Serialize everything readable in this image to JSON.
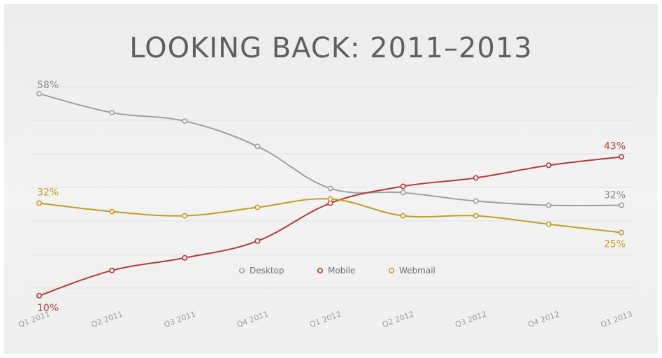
{
  "chart_data": {
    "type": "line",
    "title": "LOOKING BACK: 2011–2013",
    "categories": [
      "Q1 2011",
      "Q2 2011",
      "Q3 2011",
      "Q4 2011",
      "Q1 2012",
      "Q2 2012",
      "Q3 2012",
      "Q4 2012",
      "Q1 2013"
    ],
    "ylim": [
      5,
      63
    ],
    "grid": true,
    "legend_position": "bottom-center",
    "series": [
      {
        "name": "Desktop",
        "color": "#a0a0a3",
        "values": [
          58,
          53.5,
          51.5,
          45.5,
          35.5,
          34.5,
          32.5,
          31.5,
          31.5
        ],
        "labels": [
          {
            "index": 0,
            "text": "58%",
            "color": "#8e8e90"
          },
          {
            "index": 8,
            "text": "32%",
            "color": "#8e8e90"
          }
        ]
      },
      {
        "name": "Mobile",
        "color": "#b83a34",
        "values": [
          10,
          16,
          19,
          23,
          32,
          36,
          38,
          41,
          43
        ],
        "labels": [
          {
            "index": 0,
            "text": "10%",
            "color": "#b83a34"
          },
          {
            "index": 8,
            "text": "43%",
            "color": "#b83a34"
          }
        ]
      },
      {
        "name": "Webmail",
        "color": "#c79b22",
        "values": [
          32,
          30,
          29,
          31,
          33,
          29,
          29,
          27,
          25
        ],
        "labels": [
          {
            "index": 0,
            "text": "32%",
            "color": "#c79b22"
          },
          {
            "index": 8,
            "text": "25%",
            "color": "#c79b22"
          }
        ]
      }
    ]
  }
}
